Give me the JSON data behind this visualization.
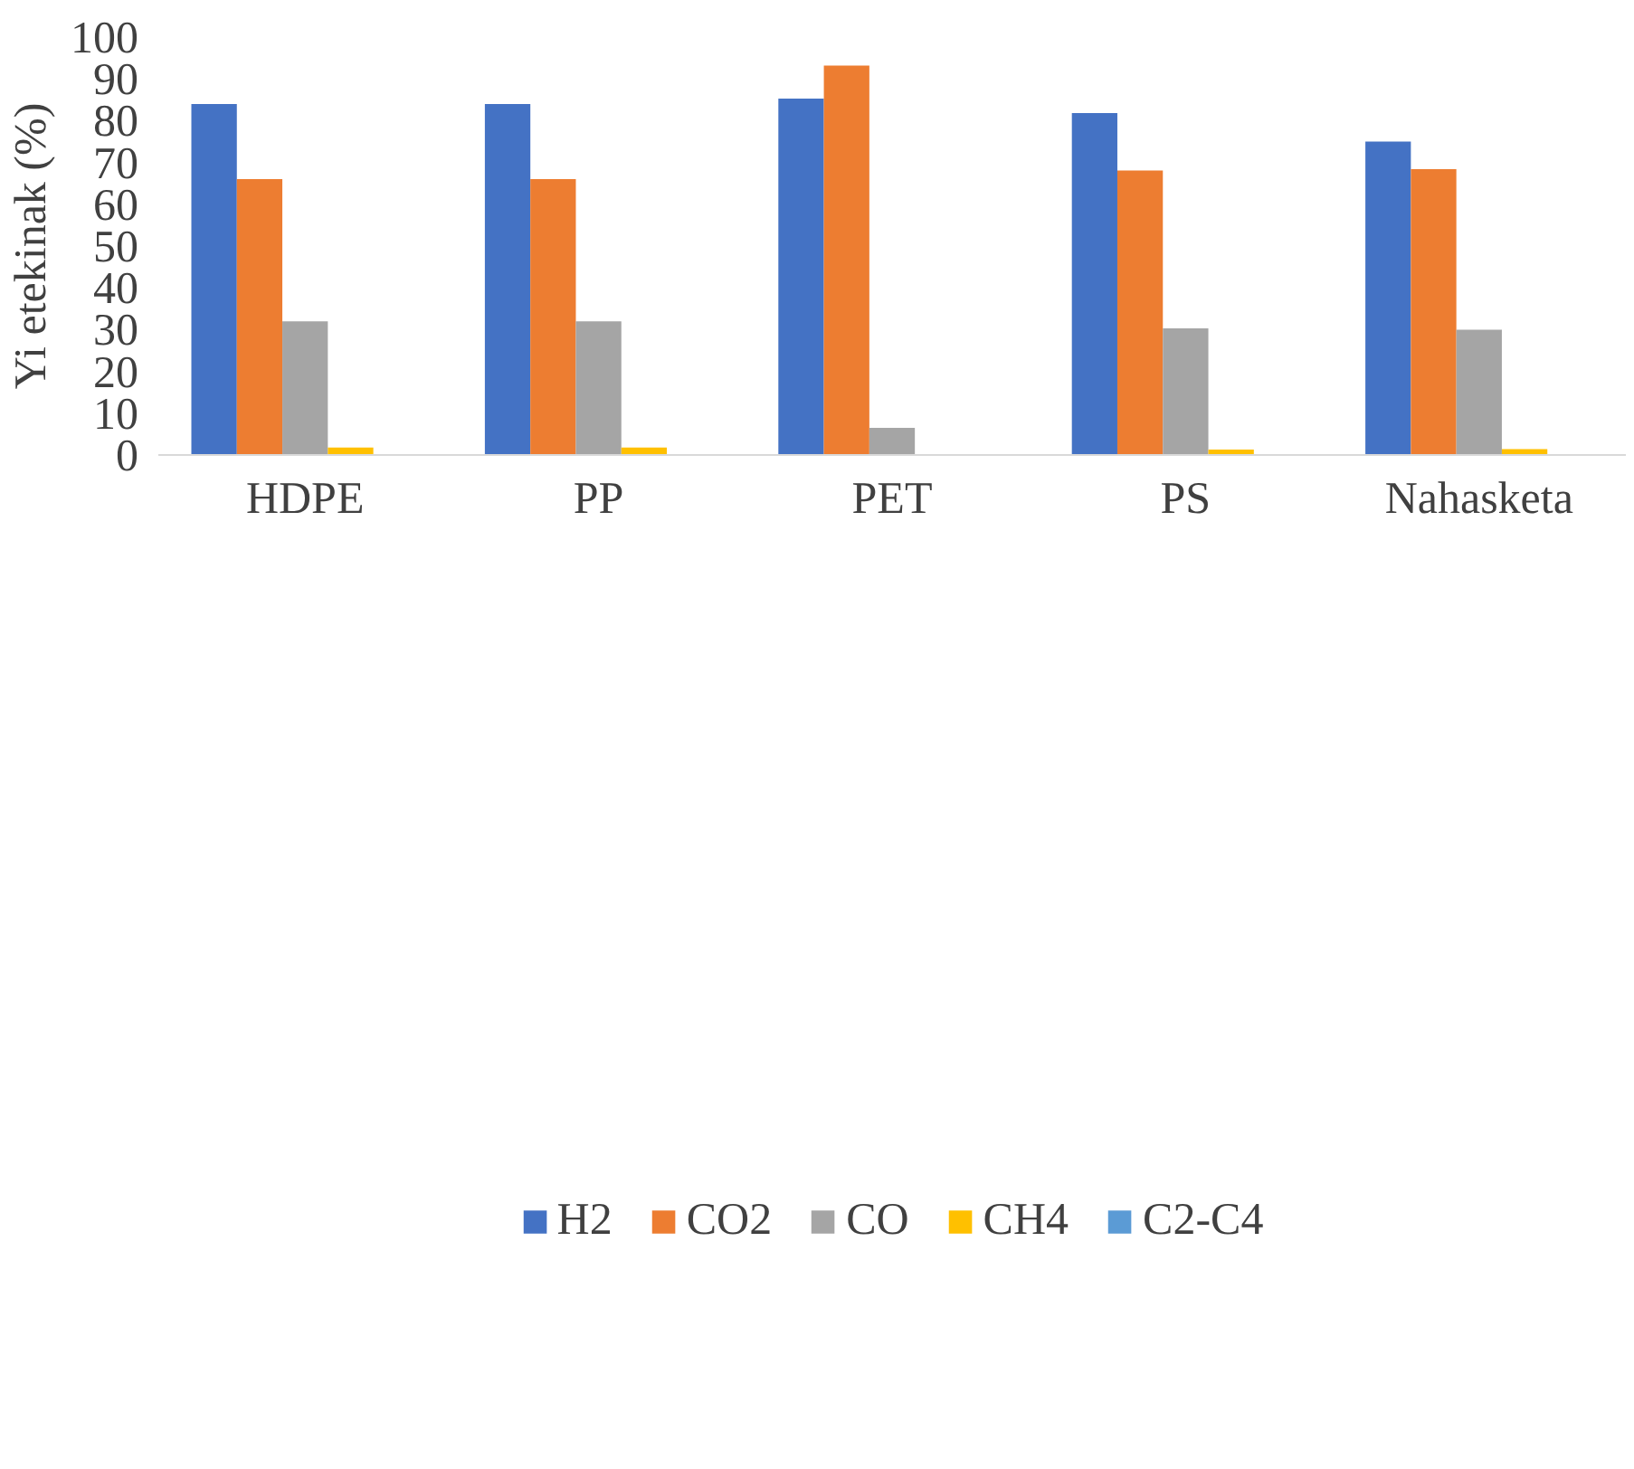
{
  "chart_data": {
    "type": "bar",
    "ylabel": "Yi etekinak (%)",
    "categories": [
      "HDPE",
      "PP",
      "PET",
      "PS",
      "Nahasketa"
    ],
    "series": [
      {
        "name": "H2",
        "color": "#4472c4",
        "values": [
          84,
          84,
          85.3,
          81.8,
          75
        ]
      },
      {
        "name": "CO2",
        "color": "#ed7d31",
        "values": [
          66,
          66,
          93.2,
          68.1,
          68.4
        ]
      },
      {
        "name": "CO",
        "color": "#a5a5a5",
        "values": [
          32,
          32,
          6.5,
          30.3,
          30
        ]
      },
      {
        "name": "CH4",
        "color": "#ffc000",
        "values": [
          1.8,
          1.8,
          0,
          1.3,
          1.4
        ]
      },
      {
        "name": "C2-C4",
        "color": "#5b9bd5",
        "values": [
          0,
          0,
          0,
          0,
          0
        ]
      }
    ],
    "ylim": [
      0,
      100
    ],
    "yticks": [
      0,
      10,
      20,
      30,
      40,
      50,
      60,
      70,
      80,
      90,
      100
    ],
    "grid": false,
    "legend": "bottom"
  }
}
